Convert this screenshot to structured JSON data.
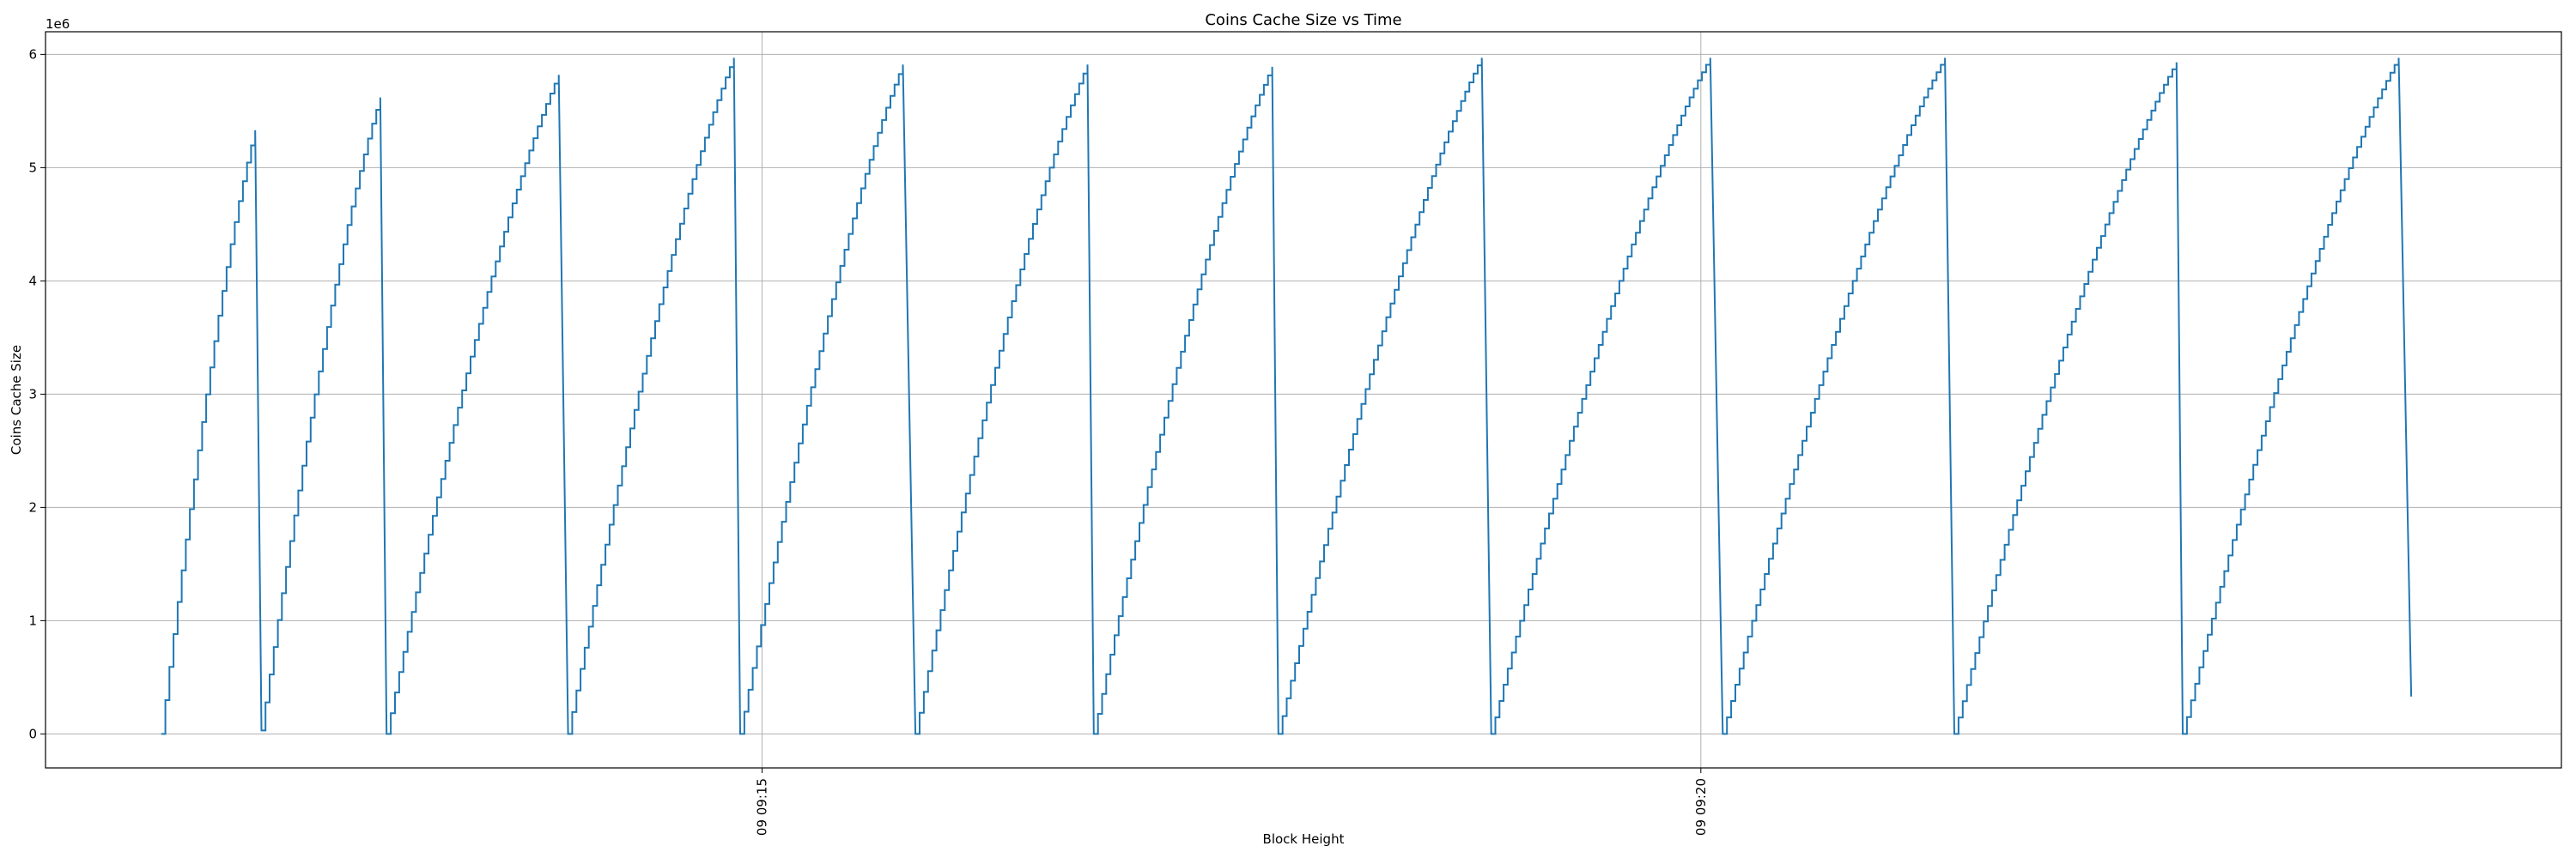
{
  "chart_data": {
    "type": "line",
    "title": "Coins Cache Size vs Time",
    "xlabel": "Block Height",
    "ylabel": "Coins Cache Size",
    "y_offset_label": "1e6",
    "ylim": [
      -0.3,
      6.2
    ],
    "xlim": [
      "09:11:11",
      "09:24:35"
    ],
    "grid": true,
    "y_ticks": [
      0,
      1,
      2,
      3,
      4,
      5,
      6
    ],
    "x_ticks": [
      {
        "time": "09:15:00",
        "label": "09 09:15"
      },
      {
        "time": "09:20:00",
        "label": "09 09:20"
      }
    ],
    "line_color": "#1f77b4",
    "series": [
      {
        "x": [
          "09:11:48",
          "09:12:18",
          "09:12:20",
          "09:12:58",
          "09:13:00",
          "09:13:55",
          "09:13:58",
          "09:14:51",
          "09:14:53",
          "09:15:45",
          "09:15:49",
          "09:16:44",
          "09:16:46",
          "09:17:43",
          "09:17:45",
          "09:18:50",
          "09:18:53",
          "09:20:03",
          "09:20:07",
          "09:21:18",
          "09:21:21",
          "09:22:32",
          "09:22:34",
          "09:23:43",
          "09:23:47"
        ],
        "y": [
          0,
          5.33,
          0.03,
          5.62,
          0,
          5.82,
          0,
          5.97,
          0,
          5.91,
          0,
          5.91,
          0,
          5.89,
          0,
          5.97,
          0,
          5.97,
          0,
          5.97,
          0,
          5.93,
          0,
          5.97,
          0.33
        ]
      }
    ]
  }
}
